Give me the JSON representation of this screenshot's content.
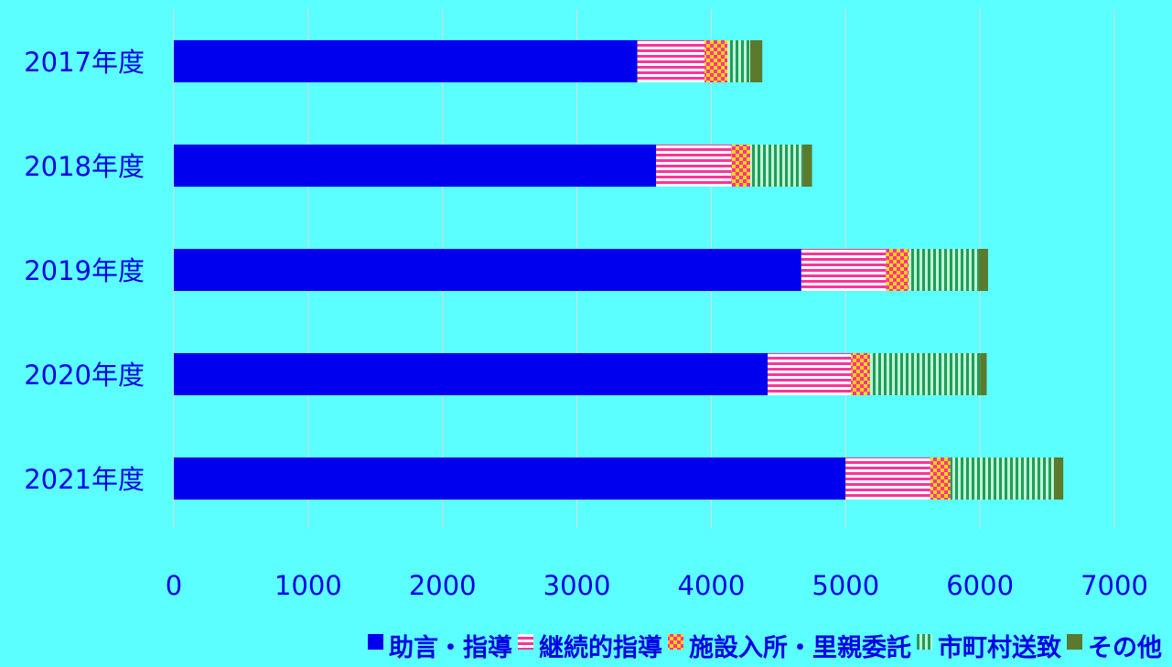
{
  "chart_data": {
    "type": "bar",
    "orientation": "horizontal",
    "stacked": true,
    "categories": [
      "2017年度",
      "2018年度",
      "2019年度",
      "2020年度",
      "2021年度"
    ],
    "series": [
      {
        "name": "助言・指導",
        "values": [
          3450,
          3590,
          4670,
          4420,
          5000
        ],
        "color": "#0000ee",
        "pattern": "solid"
      },
      {
        "name": "継続的指導",
        "values": [
          500,
          560,
          630,
          620,
          630
        ],
        "color": "#ff3399",
        "pattern": "horizontal-stripes"
      },
      {
        "name": "施設入所・里親委託",
        "values": [
          170,
          140,
          170,
          140,
          150
        ],
        "color": "#ff3399",
        "pattern": "checker"
      },
      {
        "name": "市町村送致",
        "values": [
          170,
          390,
          520,
          820,
          770
        ],
        "color": "#1f9e59",
        "pattern": "vertical-stripes"
      },
      {
        "name": "その他",
        "values": [
          90,
          70,
          70,
          50,
          70
        ],
        "color": "#5a7a2e",
        "pattern": "solid"
      }
    ],
    "xlim": [
      0,
      7000
    ],
    "xticks": [
      0,
      1000,
      2000,
      3000,
      4000,
      5000,
      6000,
      7000
    ],
    "grid": "vertical",
    "legend": "bottom",
    "title": "",
    "xlabel": "",
    "ylabel": ""
  }
}
